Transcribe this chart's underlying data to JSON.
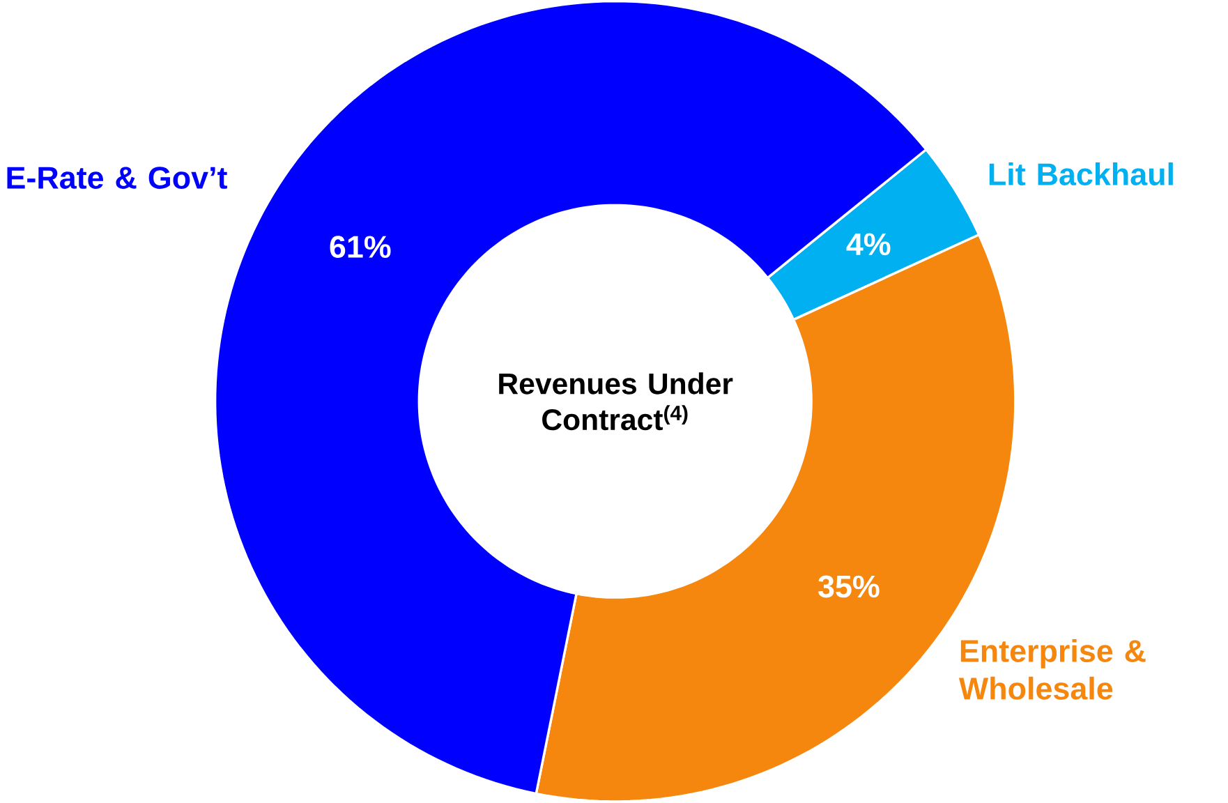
{
  "chart_data": {
    "type": "donut",
    "title": "Revenues Under Contract$^{(4)}$",
    "categories": [
      "Lit Backhaul",
      "Enterprise & Wholesale",
      "E-Rate & Gov’t"
    ],
    "values": [
      4,
      35,
      61
    ],
    "colors": [
      "#00b0f0",
      "#f5870f",
      "#0000ff"
    ],
    "value_labels": [
      "4%",
      "35%",
      "61%"
    ]
  }
}
